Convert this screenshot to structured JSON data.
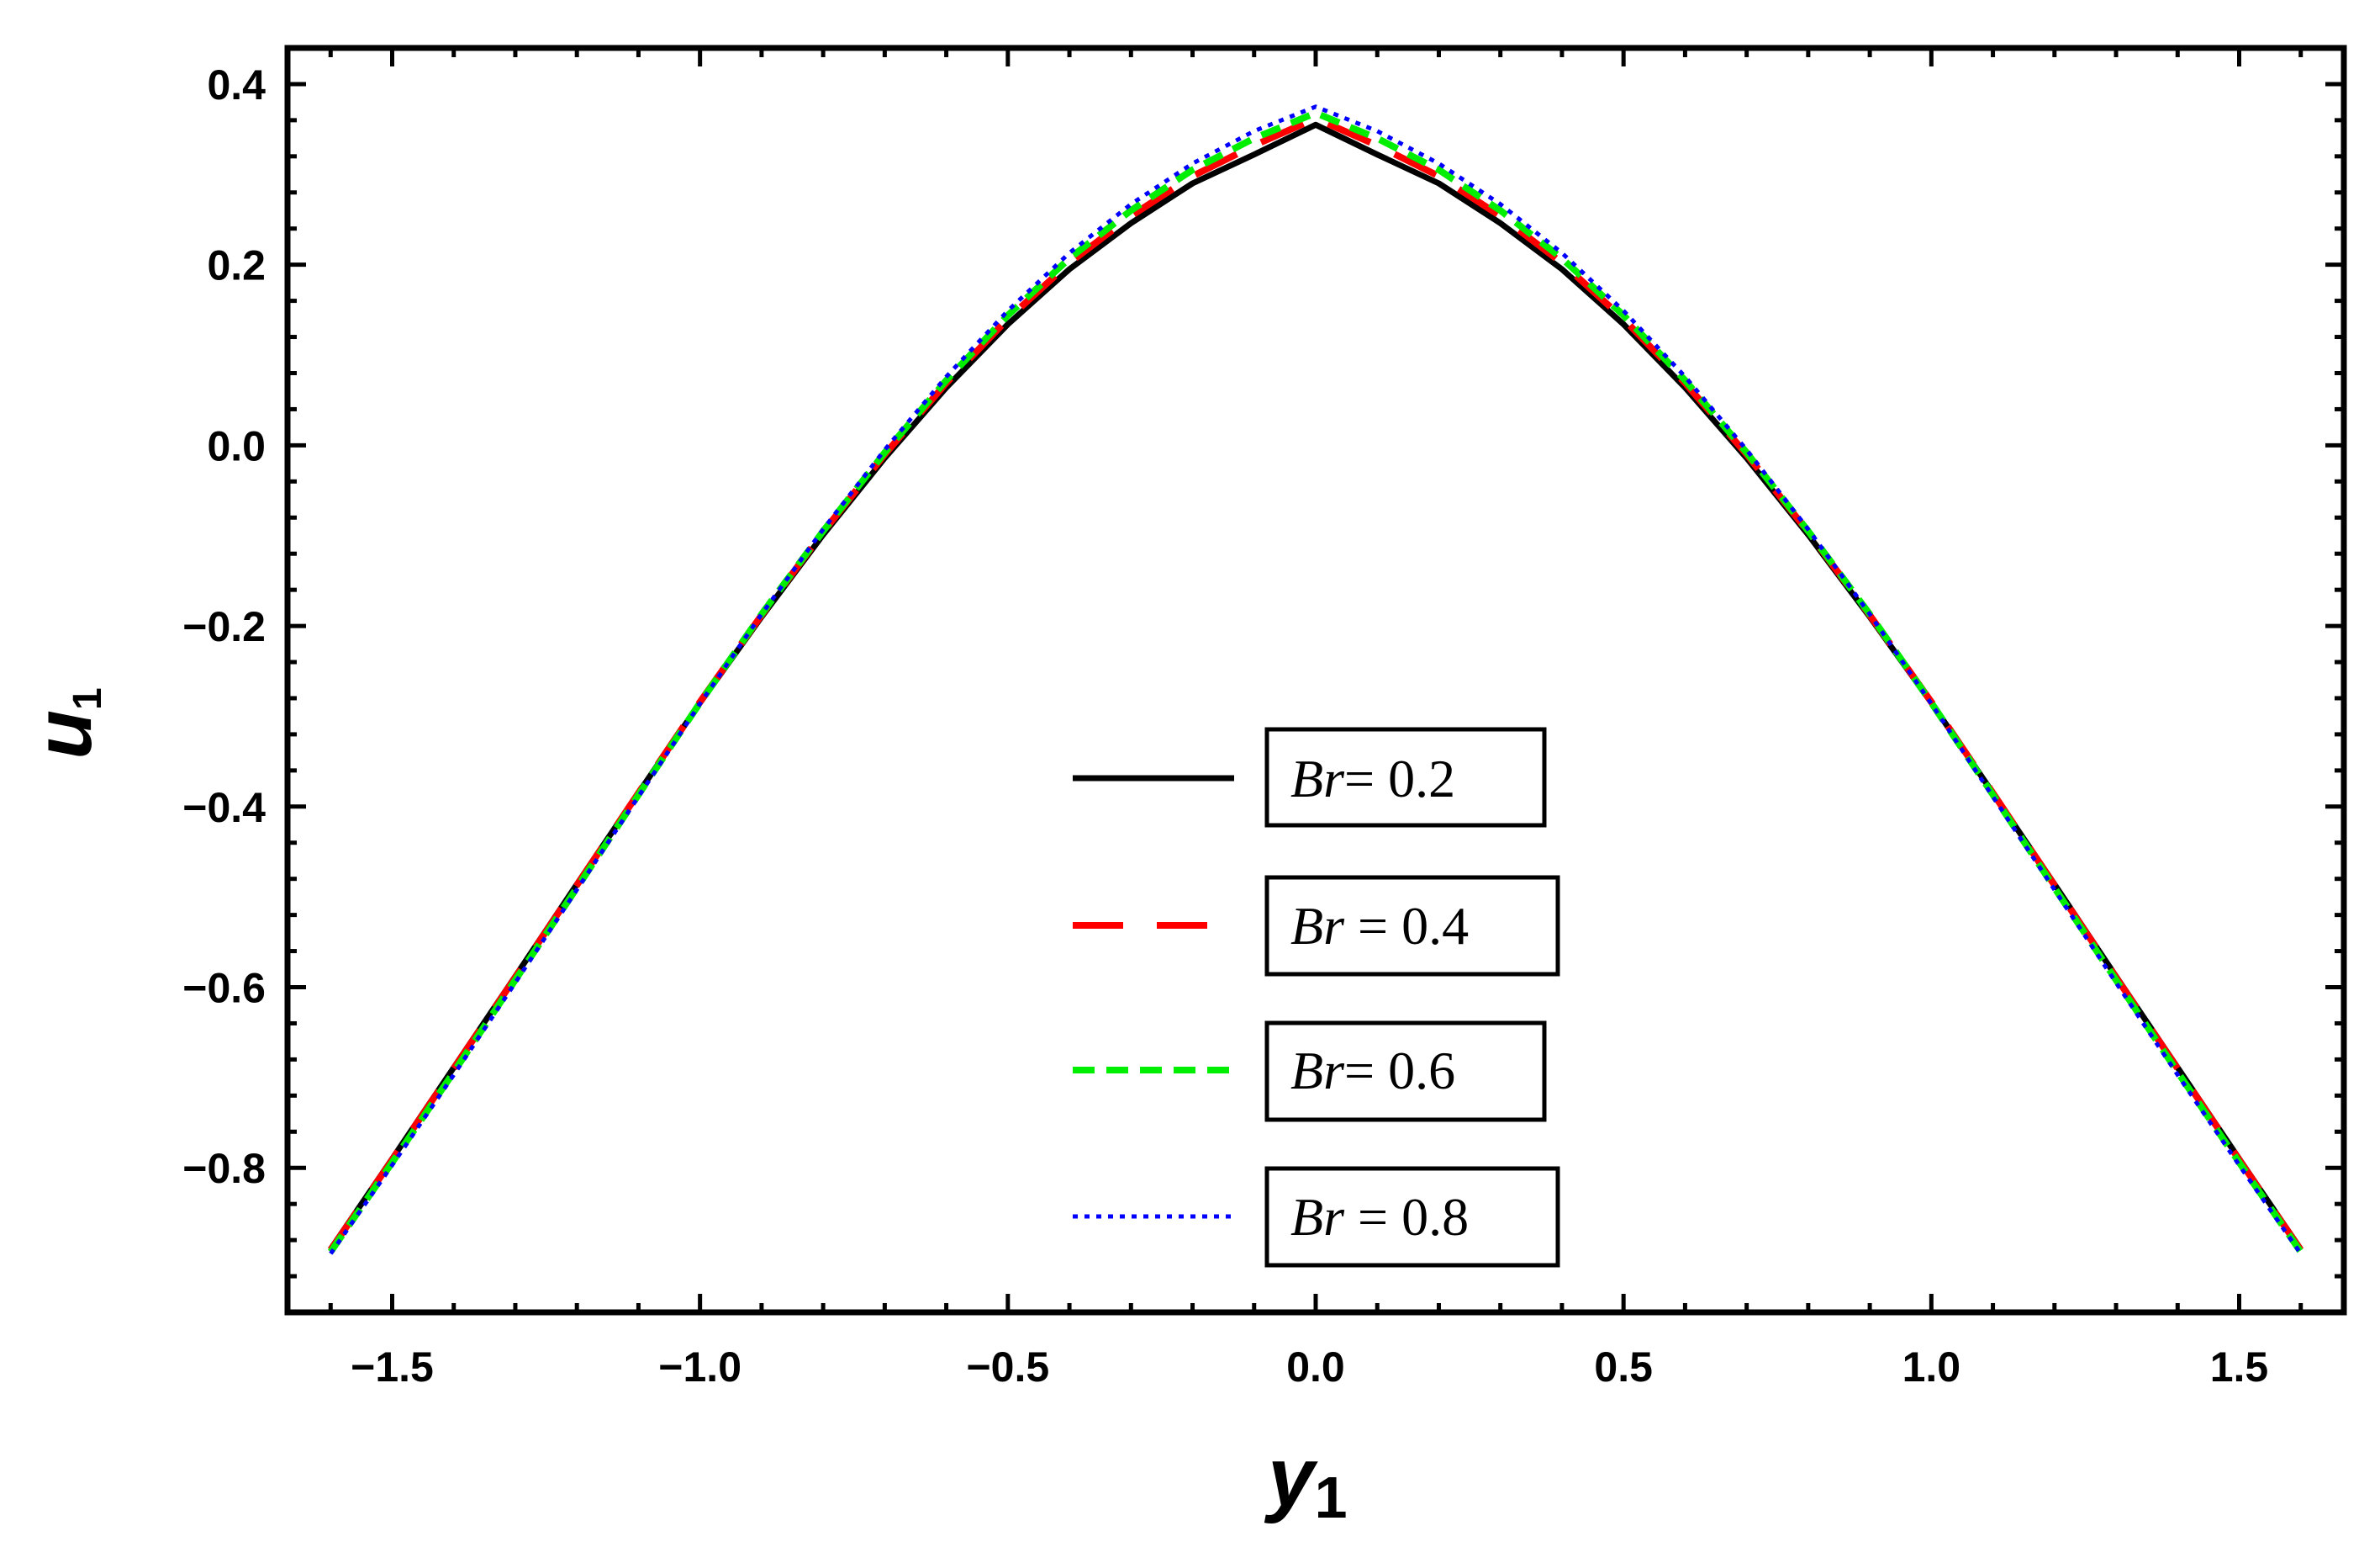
{
  "chart_data": {
    "type": "line",
    "xlabel": {
      "base": "y",
      "sub": "1"
    },
    "ylabel": {
      "base": "u",
      "sub": "1"
    },
    "xlim": [
      -1.67,
      1.67
    ],
    "ylim": [
      -0.96,
      0.44
    ],
    "x_ticks": [
      -1.5,
      -1.0,
      -0.5,
      0.0,
      0.5,
      1.0,
      1.5
    ],
    "x_tick_labels": [
      "−1.5",
      "−1.0",
      "−0.5",
      "0.0",
      "0.5",
      "1.0",
      "1.5"
    ],
    "y_ticks": [
      0.4,
      0.2,
      0.0,
      -0.2,
      -0.4,
      -0.6,
      -0.8
    ],
    "y_tick_labels": [
      "0.4",
      "0.2",
      "0.0",
      "−0.2",
      "−0.4",
      "−0.6",
      "−0.8"
    ],
    "grid": false,
    "legend_position": "center",
    "x": [
      -1.6,
      -1.5,
      -1.4,
      -1.3,
      -1.2,
      -1.1,
      -1.0,
      -0.9,
      -0.8,
      -0.7,
      -0.6,
      -0.5,
      -0.4,
      -0.3,
      -0.2,
      -0.1,
      0.0,
      0.1,
      0.2,
      0.3,
      0.4,
      0.5,
      0.6,
      0.7,
      0.8,
      0.9,
      1.0,
      1.1,
      1.2,
      1.3,
      1.4,
      1.5,
      1.6
    ],
    "series": [
      {
        "name": "Br= 0.2",
        "legend_var": "Br",
        "legend_value": "= 0.2",
        "color": "#000000",
        "style": "solid",
        "values": [
          -0.89,
          -0.79,
          -0.689,
          -0.588,
          -0.486,
          -0.385,
          -0.285,
          -0.19,
          -0.099,
          -0.014,
          0.064,
          0.134,
          0.195,
          0.246,
          0.29,
          0.322,
          0.355,
          0.322,
          0.29,
          0.246,
          0.195,
          0.134,
          0.064,
          -0.014,
          -0.099,
          -0.19,
          -0.285,
          -0.385,
          -0.486,
          -0.588,
          -0.689,
          -0.79,
          -0.89
        ]
      },
      {
        "name": "Br = 0.4",
        "legend_var": "Br",
        "legend_value": " = 0.4",
        "color": "#ff0000",
        "style": "dashed",
        "values": [
          -0.891,
          -0.791,
          -0.69,
          -0.589,
          -0.487,
          -0.385,
          -0.284,
          -0.188,
          -0.096,
          -0.01,
          0.069,
          0.14,
          0.202,
          0.254,
          0.298,
          0.332,
          0.362,
          0.332,
          0.298,
          0.254,
          0.202,
          0.14,
          0.069,
          -0.01,
          -0.096,
          -0.188,
          -0.284,
          -0.385,
          -0.487,
          -0.589,
          -0.69,
          -0.791,
          -0.891
        ]
      },
      {
        "name": "Br= 0.6",
        "legend_var": "Br",
        "legend_value": "= 0.6",
        "color": "#00ee00",
        "style": "short-dashed",
        "values": [
          -0.893,
          -0.794,
          -0.694,
          -0.592,
          -0.49,
          -0.387,
          -0.285,
          -0.187,
          -0.095,
          -0.008,
          0.072,
          0.144,
          0.207,
          0.26,
          0.305,
          0.34,
          0.368,
          0.34,
          0.305,
          0.26,
          0.207,
          0.144,
          0.072,
          -0.008,
          -0.095,
          -0.187,
          -0.285,
          -0.387,
          -0.49,
          -0.592,
          -0.694,
          -0.794,
          -0.893
        ]
      },
      {
        "name": "Br = 0.8",
        "legend_var": "Br",
        "legend_value": " = 0.8",
        "color": "#0000ff",
        "style": "dotted",
        "values": [
          -0.895,
          -0.797,
          -0.697,
          -0.595,
          -0.492,
          -0.389,
          -0.286,
          -0.187,
          -0.093,
          -0.005,
          0.076,
          0.149,
          0.213,
          0.267,
          0.312,
          0.348,
          0.375,
          0.348,
          0.312,
          0.267,
          0.213,
          0.149,
          0.076,
          -0.005,
          -0.093,
          -0.187,
          -0.286,
          -0.389,
          -0.492,
          -0.595,
          -0.697,
          -0.797,
          -0.895
        ]
      }
    ]
  }
}
